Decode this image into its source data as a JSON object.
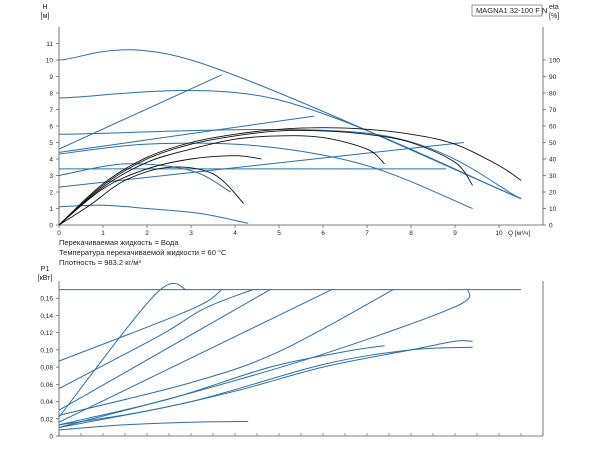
{
  "model_label": "MAGNA1 32-100 F N",
  "medium_info": [
    "Перекачиваемая жидкость = Вода",
    "Температура перекачиваемой жидкости = 60 °C",
    "Плотность = 983.2 кг/м³"
  ],
  "colors": {
    "curve": "#2a6fa8",
    "efficiency": "#111111",
    "axis": "#555555",
    "grid": "#cccccc"
  },
  "chart_data": [
    {
      "type": "line",
      "ylabel": "H [м]",
      "y2label": "eta [%]",
      "xlabel": "Q [м³/ч]",
      "xlim": [
        0,
        11
      ],
      "ylim": [
        0,
        12
      ],
      "y2lim": [
        0,
        120
      ],
      "xticks": [
        0,
        1,
        2,
        3,
        4,
        5,
        6,
        7,
        8,
        9,
        10
      ],
      "yticks": [
        0,
        1,
        2,
        3,
        4,
        5,
        6,
        7,
        8,
        9,
        10,
        11
      ],
      "y2ticks": [
        0,
        10,
        20,
        30,
        40,
        50,
        60,
        70,
        80,
        90,
        100
      ],
      "series_group": "head",
      "series": [
        {
          "values": [
            [
              0,
              10.0
            ],
            [
              3.0,
              10.0
            ],
            [
              10.5,
              1.6
            ]
          ]
        },
        {
          "values": [
            [
              0,
              7.7
            ],
            [
              4.8,
              7.7
            ],
            [
              10.5,
              1.6
            ]
          ]
        },
        {
          "values": [
            [
              0,
              5.5
            ],
            [
              7.2,
              5.5
            ],
            [
              10.5,
              1.6
            ]
          ]
        },
        {
          "values": [
            [
              0,
              4.6
            ],
            [
              3.7,
              9.1
            ]
          ]
        },
        {
          "values": [
            [
              0,
              3.4
            ],
            [
              8.8,
              3.4
            ]
          ]
        },
        {
          "values": [
            [
              0,
              2.3
            ],
            [
              9.2,
              5.0
            ]
          ]
        },
        {
          "values": [
            [
              0,
              4.4
            ],
            [
              5.8,
              6.6
            ]
          ]
        },
        {
          "values": [
            [
              0,
              4.3
            ],
            [
              2.0,
              4.9
            ],
            [
              4.5,
              4.8
            ],
            [
              7.0,
              3.6
            ],
            [
              9.4,
              1.0
            ]
          ]
        },
        {
          "values": [
            [
              0,
              3.0
            ],
            [
              1.5,
              3.7
            ],
            [
              3.0,
              3.3
            ],
            [
              3.9,
              2.0
            ]
          ]
        },
        {
          "values": [
            [
              0,
              1.1
            ],
            [
              1.0,
              1.2
            ],
            [
              2.0,
              1.0
            ],
            [
              3.2,
              0.7
            ],
            [
              4.3,
              0.1
            ]
          ]
        }
      ],
      "efficiency": [
        {
          "values": [
            [
              0,
              0
            ],
            [
              0.7,
              12
            ],
            [
              1.5,
              27
            ],
            [
              2.5,
              35
            ],
            [
              3.5,
              31
            ],
            [
              4.2,
              13
            ]
          ]
        },
        {
          "values": [
            [
              0,
              0
            ],
            [
              1.0,
              22
            ],
            [
              2.0,
              34
            ],
            [
              3.0,
              40
            ],
            [
              4.0,
              42
            ],
            [
              4.6,
              40
            ]
          ]
        },
        {
          "values": [
            [
              0,
              0
            ],
            [
              1.0,
              23
            ],
            [
              2.0,
              38
            ],
            [
              3.0,
              46
            ],
            [
              4.0,
              52
            ],
            [
              5.0,
              54
            ],
            [
              6.0,
              53
            ],
            [
              7.0,
              46
            ],
            [
              7.4,
              37
            ]
          ]
        },
        {
          "values": [
            [
              0,
              0
            ],
            [
              1.0,
              24
            ],
            [
              2.0,
              40
            ],
            [
              3.0,
              49
            ],
            [
              4.0,
              54
            ],
            [
              5.0,
              57
            ],
            [
              6.0,
              57
            ],
            [
              7.0,
              55
            ],
            [
              8.0,
              50
            ],
            [
              9.0,
              38
            ],
            [
              9.4,
              24
            ]
          ]
        },
        {
          "values": [
            [
              0,
              0
            ],
            [
              1.0,
              25
            ],
            [
              2.0,
              41
            ],
            [
              3.0,
              50
            ],
            [
              4.0,
              55
            ],
            [
              5.0,
              58
            ],
            [
              6.0,
              59
            ],
            [
              7.0,
              58
            ],
            [
              8.0,
              55
            ],
            [
              9.0,
              49
            ],
            [
              10.0,
              36
            ],
            [
              10.5,
              27
            ]
          ]
        }
      ]
    },
    {
      "type": "line",
      "ylabel": "P1 [кВт]",
      "xlim": [
        0,
        11
      ],
      "ylim": [
        0,
        0.18
      ],
      "yticks": [
        0,
        0.02,
        0.04,
        0.06,
        0.08,
        0.1,
        0.12,
        0.14,
        0.16
      ],
      "ytick_labels": [
        "0",
        "0,02",
        "0,04",
        "0,06",
        "0,08",
        "0,10",
        "0,12",
        "0,14",
        "0,16"
      ],
      "series_group": "power",
      "series": [
        {
          "values": [
            [
              0,
              0.17
            ],
            [
              10.5,
              0.17
            ]
          ]
        },
        {
          "values": [
            [
              0,
              0.087
            ],
            [
              3.0,
              0.147
            ],
            [
              3.7,
              0.17
            ]
          ]
        },
        {
          "values": [
            [
              0,
              0.055
            ],
            [
              2.3,
              0.117
            ],
            [
              3.3,
              0.148
            ],
            [
              4.4,
              0.17
            ]
          ]
        },
        {
          "values": [
            [
              0,
              0.022
            ],
            [
              2.2,
              0.165
            ],
            [
              2.9,
              0.17
            ]
          ]
        },
        {
          "values": [
            [
              0,
              0.03
            ],
            [
              4.8,
              0.17
            ]
          ]
        },
        {
          "values": [
            [
              0,
              0.016
            ],
            [
              6.2,
              0.17
            ]
          ]
        },
        {
          "values": [
            [
              0,
              0.024
            ],
            [
              3.0,
              0.062
            ],
            [
              5.0,
              0.098
            ],
            [
              7.6,
              0.17
            ]
          ]
        },
        {
          "values": [
            [
              0,
              0.01
            ],
            [
              3.0,
              0.05
            ],
            [
              6.0,
              0.095
            ],
            [
              9.0,
              0.15
            ],
            [
              9.3,
              0.17
            ]
          ]
        },
        {
          "values": [
            [
              0,
              0.013
            ],
            [
              2.5,
              0.043
            ],
            [
              4.8,
              0.08
            ],
            [
              6.5,
              0.098
            ],
            [
              7.4,
              0.105
            ]
          ]
        },
        {
          "values": [
            [
              0,
              0.01
            ],
            [
              3.0,
              0.04
            ],
            [
              6.0,
              0.083
            ],
            [
              8.0,
              0.1
            ],
            [
              9.4,
              0.103
            ]
          ]
        },
        {
          "values": [
            [
              0,
              0.013
            ],
            [
              2.0,
              0.029
            ],
            [
              4.0,
              0.052
            ],
            [
              6.0,
              0.08
            ],
            [
              8.0,
              0.1
            ],
            [
              9.0,
              0.11
            ],
            [
              9.4,
              0.11
            ]
          ]
        },
        {
          "values": [
            [
              0,
              0.007
            ],
            [
              1.5,
              0.013
            ],
            [
              3.0,
              0.016
            ],
            [
              4.3,
              0.017
            ]
          ]
        }
      ]
    }
  ]
}
